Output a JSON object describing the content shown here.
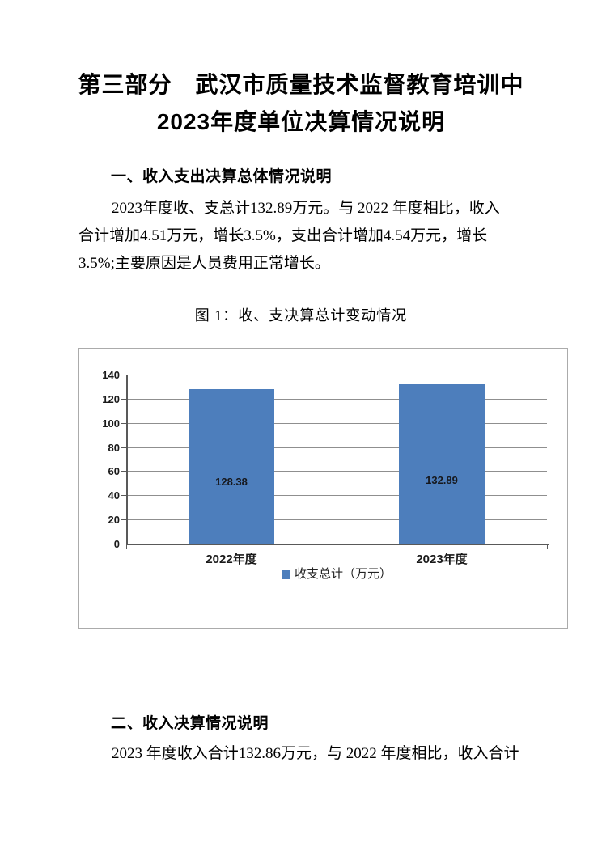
{
  "page": {
    "title_line1": "第三部分　武汉市质量技术监督教育培训中",
    "title_line2": "2023年度单位决算情况说明",
    "section1": {
      "heading": "一、收入支出决算总体情况说明",
      "lines": [
        "2023年度收、支总计132.89万元。与 2022 年度相比，收入",
        "合计增加4.51万元，增长3.5%，支出合计增加4.54万元，增长",
        "3.5%;主要原因是人员费用正常增长。"
      ]
    },
    "figure_caption": "图 1：收、支决算总计变动情况",
    "section2": {
      "heading": "二、收入决算情况说明",
      "lines": [
        "2023 年度收入合计132.86万元，与 2022 年度相比，收入合计"
      ]
    }
  },
  "chart_data": {
    "type": "bar",
    "categories": [
      "2022年度",
      "2023年度"
    ],
    "series": [
      {
        "name": "收支总计（万元）",
        "values": [
          128.38,
          132.89
        ]
      }
    ],
    "data_labels": [
      "128.38",
      "132.89"
    ],
    "yticks": [
      0,
      20,
      40,
      60,
      80,
      100,
      120,
      140
    ],
    "ylim": [
      0,
      140
    ],
    "grid": true,
    "legend_position": "bottom",
    "bar_color": "#4d7ebc",
    "gridline_color": "#8f8f8f",
    "axis_color": "#595959"
  }
}
